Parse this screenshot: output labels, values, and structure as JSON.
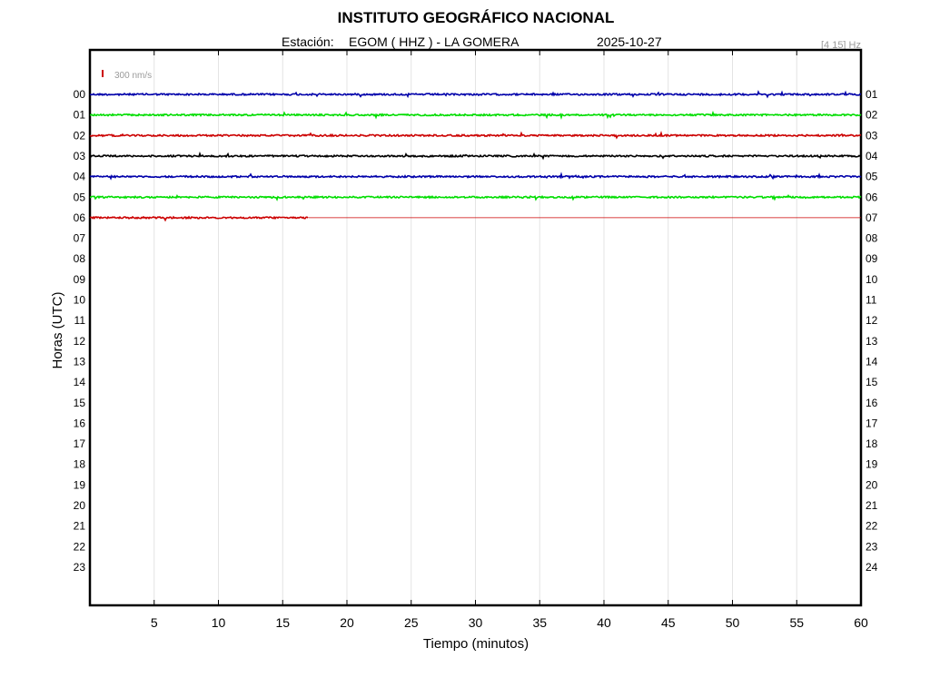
{
  "chart_data": {
    "type": "line",
    "title": "INSTITUTO GEOGRÁFICO NACIONAL",
    "station_label": "Estación:",
    "station": "EGOM ( HHZ ) - LA GOMERA",
    "date": "2025-10-27",
    "frequency_band": "[4 15] Hz",
    "scale_label": "300 nm/s",
    "xlabel": "Tiempo (minutos)",
    "ylabel": "Horas (UTC)",
    "xlim": [
      0,
      60
    ],
    "x_ticks": [
      5,
      10,
      15,
      20,
      25,
      30,
      35,
      40,
      45,
      50,
      55,
      60
    ],
    "left_hours": [
      "00",
      "01",
      "02",
      "03",
      "04",
      "05",
      "06",
      "07",
      "08",
      "09",
      "10",
      "11",
      "12",
      "13",
      "14",
      "15",
      "16",
      "17",
      "18",
      "19",
      "20",
      "21",
      "22",
      "23"
    ],
    "right_hours": [
      "01",
      "02",
      "03",
      "04",
      "05",
      "06",
      "07",
      "08",
      "09",
      "10",
      "11",
      "12",
      "13",
      "14",
      "15",
      "16",
      "17",
      "18",
      "19",
      "20",
      "21",
      "22",
      "23",
      "24"
    ],
    "grid": true,
    "series": [
      {
        "hour": "00",
        "color": "#0000aa",
        "data_end_minute": 60
      },
      {
        "hour": "01",
        "color": "#00dd00",
        "data_end_minute": 60
      },
      {
        "hour": "02",
        "color": "#cc0000",
        "data_end_minute": 60
      },
      {
        "hour": "03",
        "color": "#000000",
        "data_end_minute": 60
      },
      {
        "hour": "04",
        "color": "#0000aa",
        "data_end_minute": 60
      },
      {
        "hour": "05",
        "color": "#00dd00",
        "data_end_minute": 60
      },
      {
        "hour": "06",
        "color": "#cc0000",
        "data_end_minute": 17
      }
    ]
  }
}
